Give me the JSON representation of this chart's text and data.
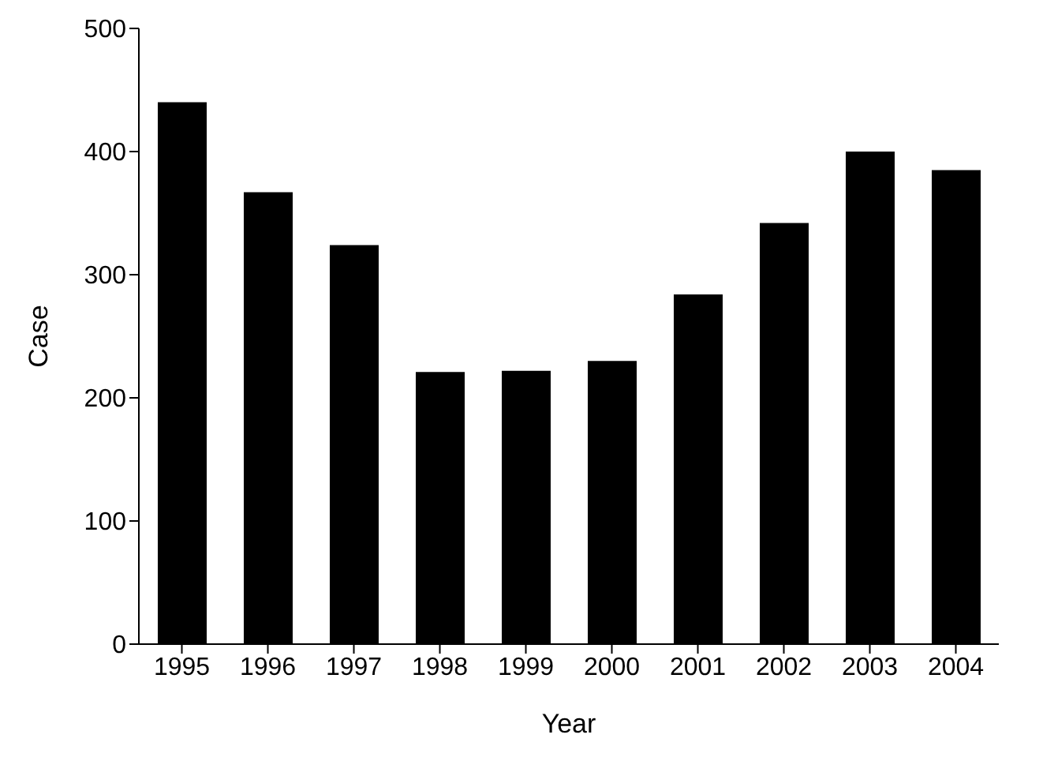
{
  "chart_data": {
    "type": "bar",
    "xlabel": "Year",
    "ylabel": "Case",
    "categories": [
      "1995",
      "1996",
      "1997",
      "1998",
      "1999",
      "2000",
      "2001",
      "2002",
      "2003",
      "2004"
    ],
    "values": [
      440,
      367,
      324,
      221,
      222,
      230,
      284,
      342,
      400,
      385
    ],
    "color": "#000000",
    "ylim": [
      0,
      500
    ],
    "yticks": [
      0,
      100,
      200,
      300,
      400,
      500
    ],
    "grid": false,
    "legend": false
  }
}
